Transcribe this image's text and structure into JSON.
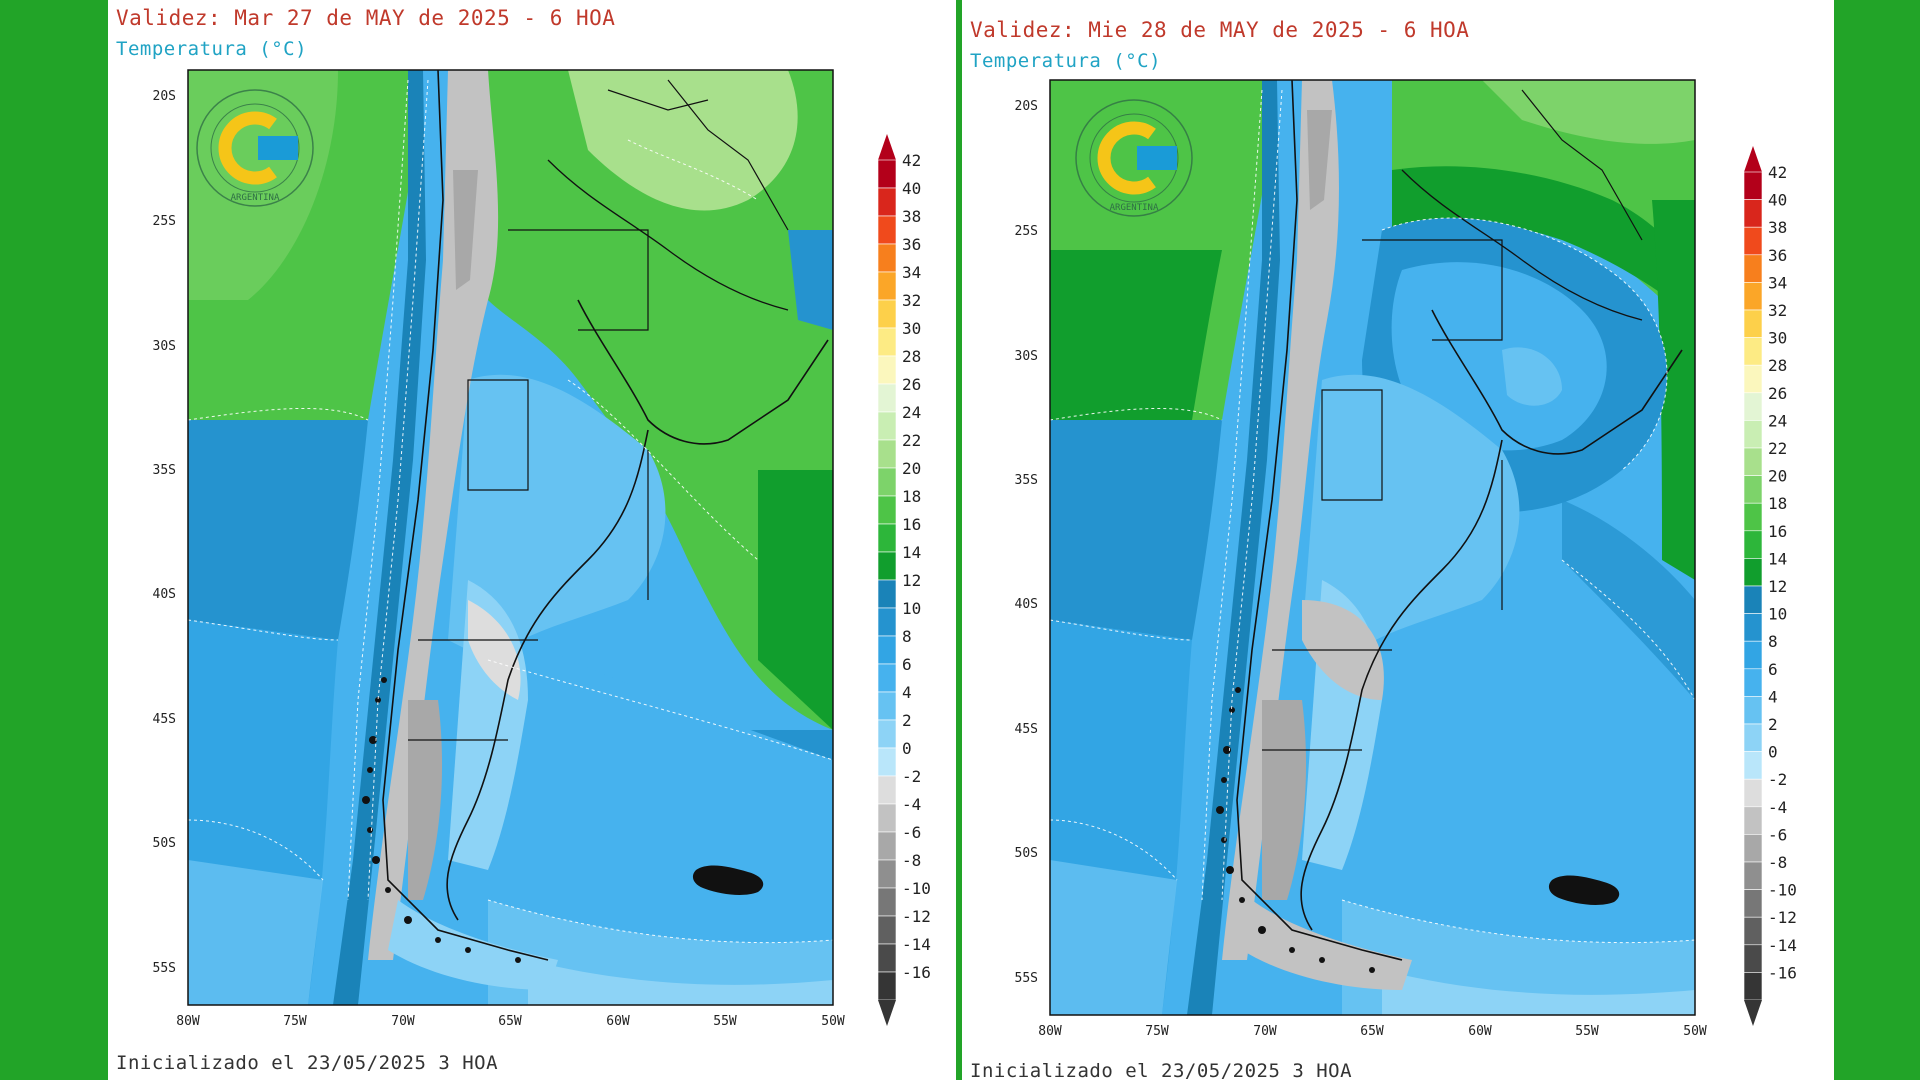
{
  "colors": {
    "background": "#22a428",
    "title": "#c0392b",
    "subtitle": "#20a3c4"
  },
  "scale_labels": [
    "42",
    "40",
    "38",
    "36",
    "34",
    "32",
    "30",
    "28",
    "26",
    "24",
    "22",
    "20",
    "18",
    "16",
    "14",
    "12",
    "10",
    "8",
    "6",
    "4",
    "2",
    "0",
    "-2",
    "-4",
    "-6",
    "-8",
    "-10",
    "-12",
    "-14",
    "-16"
  ],
  "scale_colors": [
    "#b3001a",
    "#d9261c",
    "#f04a1c",
    "#f77f1d",
    "#fba628",
    "#fdd04a",
    "#fdeb84",
    "#fbf7bd",
    "#e3f5d4",
    "#c9eeb3",
    "#a8e08c",
    "#7dd36a",
    "#4ec447",
    "#2db63a",
    "#119e2d",
    "#1a83b8",
    "#2593cf",
    "#32a5e4",
    "#46b2ee",
    "#66c2f2",
    "#8dd3f6",
    "#b9e6fa",
    "#dddddd",
    "#c2c2c2",
    "#a8a8a8",
    "#8f8f8f",
    "#777777",
    "#606060",
    "#4a4a4a",
    "#353535"
  ],
  "map": {
    "lat_labels": [
      "20S",
      "25S",
      "30S",
      "35S",
      "40S",
      "45S",
      "50S",
      "55S"
    ],
    "lon_labels": [
      "80W",
      "75W",
      "70W",
      "65W",
      "60W",
      "55W",
      "50W"
    ],
    "logo_text": "ARGENTINA"
  },
  "panels": [
    {
      "title": "Validez: Mar 27 de MAY de 2025 - 6 HOA",
      "subtitle": "Temperatura (°C)",
      "footer": "Inicializado el 23/05/2025 3 HOA"
    },
    {
      "title": "Validez: Mie 28 de MAY de 2025 - 6 HOA",
      "subtitle": "Temperatura (°C)",
      "footer": "Inicializado el 23/05/2025 3 HOA"
    }
  ]
}
